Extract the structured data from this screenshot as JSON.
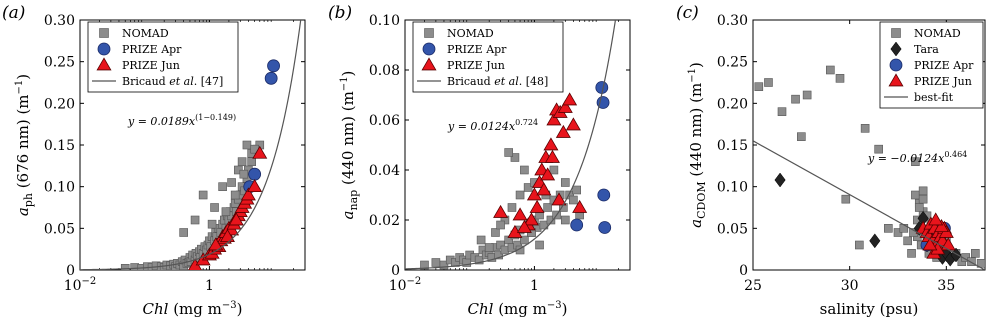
{
  "chart_data": [
    {
      "type": "scatter",
      "panel_label": "(a)",
      "xlabel": {
        "italic": "Chl",
        "rest": " (mg m",
        "sup": "−3",
        "end": ")"
      },
      "ylabel": {
        "base": "a",
        "sub": "ph",
        "rest": " (676 nm) (m",
        "sup": "−1",
        "end": ")"
      },
      "xscale": "log",
      "xlim": [
        0.01,
        30
      ],
      "ylim": [
        0,
        0.3
      ],
      "xticks": [
        0.01,
        1
      ],
      "xtick_labels": [
        {
          "base": "10",
          "sup": "−2"
        },
        {
          "base": "1",
          "sup": ""
        }
      ],
      "yticks": [
        0,
        0.05,
        0.1,
        0.15,
        0.2,
        0.25,
        0.3
      ],
      "ytick_labels": [
        "0",
        "0.05",
        "0.10",
        "0.15",
        "0.20",
        "0.25",
        "0.30"
      ],
      "legend": {
        "entries": [
          {
            "label": "NOMAD",
            "marker": "square"
          },
          {
            "label": "PRIZE Apr",
            "marker": "circle"
          },
          {
            "label": "PRIZE Jun",
            "marker": "triangle"
          },
          {
            "label_parts": [
              "Bricaud ",
              "et al",
              ". [47]"
            ],
            "marker": "line"
          }
        ]
      },
      "equation": {
        "text": "y = 0.0189x",
        "sup": "(1−0.149)"
      },
      "curve": {
        "type": "power",
        "a": 0.0189,
        "b": 0.851
      },
      "series": [
        {
          "name": "NOMAD",
          "marker": "square",
          "color": "#8c8c8c",
          "x": [
            0.05,
            0.07,
            0.09,
            0.11,
            0.13,
            0.15,
            0.18,
            0.2,
            0.22,
            0.25,
            0.28,
            0.3,
            0.32,
            0.35,
            0.38,
            0.4,
            0.42,
            0.45,
            0.48,
            0.5,
            0.52,
            0.55,
            0.6,
            0.62,
            0.65,
            0.7,
            0.72,
            0.75,
            0.8,
            0.85,
            0.9,
            0.95,
            1.0,
            1.05,
            1.1,
            1.2,
            1.25,
            1.3,
            1.4,
            1.5,
            1.6,
            1.7,
            1.8,
            1.9,
            2.0,
            2.1,
            2.2,
            2.4,
            2.5,
            2.6,
            2.8,
            3.0,
            3.2,
            3.5,
            3.8,
            4.0,
            4.5,
            5.0,
            5.5,
            6.0,
            0.6,
            0.4,
            0.8,
            1.2,
            1.6,
            2.2,
            2.8,
            3.4,
            3.2,
            3.8,
            4.5,
            5.0,
            2.5,
            1.8,
            1.1
          ],
          "y": [
            0.002,
            0.003,
            0.002,
            0.004,
            0.003,
            0.005,
            0.004,
            0.003,
            0.006,
            0.005,
            0.007,
            0.004,
            0.008,
            0.006,
            0.01,
            0.005,
            0.012,
            0.008,
            0.009,
            0.015,
            0.01,
            0.018,
            0.012,
            0.02,
            0.016,
            0.022,
            0.015,
            0.025,
            0.02,
            0.028,
            0.024,
            0.03,
            0.035,
            0.028,
            0.04,
            0.035,
            0.045,
            0.04,
            0.05,
            0.045,
            0.055,
            0.06,
            0.05,
            0.065,
            0.06,
            0.07,
            0.065,
            0.075,
            0.08,
            0.07,
            0.085,
            0.09,
            0.1,
            0.095,
            0.11,
            0.12,
            0.13,
            0.14,
            0.145,
            0.15,
            0.06,
            0.045,
            0.09,
            0.075,
            0.1,
            0.105,
            0.12,
            0.115,
            0.13,
            0.15,
            0.14,
            0.145,
            0.09,
            0.07,
            0.055
          ]
        },
        {
          "name": "PRIZE Apr",
          "marker": "circle",
          "color": "#3355aa",
          "x": [
            4.2,
            5.0,
            9.0,
            9.8
          ],
          "y": [
            0.1,
            0.115,
            0.23,
            0.245
          ]
        },
        {
          "name": "PRIZE Jun",
          "marker": "triangle",
          "color": "#e8141c",
          "x": [
            0.6,
            0.8,
            1.0,
            1.1,
            1.2,
            1.3,
            1.4,
            1.5,
            1.6,
            1.7,
            1.8,
            2.0,
            2.2,
            2.4,
            2.5,
            2.8,
            3.0,
            3.2,
            3.5,
            3.8,
            4.0,
            5.0,
            6.0,
            2.6,
            1.9,
            1.25
          ],
          "y": [
            0.005,
            0.012,
            0.018,
            0.02,
            0.025,
            0.03,
            0.028,
            0.035,
            0.04,
            0.038,
            0.045,
            0.05,
            0.048,
            0.055,
            0.06,
            0.065,
            0.07,
            0.075,
            0.08,
            0.085,
            0.09,
            0.1,
            0.14,
            0.06,
            0.04,
            0.03
          ]
        }
      ]
    },
    {
      "type": "scatter",
      "panel_label": "(b)",
      "xlabel": {
        "italic": "Chl",
        "rest": " (mg m",
        "sup": "−3",
        "end": ")"
      },
      "ylabel": {
        "base": "a",
        "sub": "nap",
        "rest": " (440 nm) (m",
        "sup": "−1",
        "end": ")"
      },
      "xscale": "log",
      "xlim": [
        0.01,
        30
      ],
      "ylim": [
        0,
        0.1
      ],
      "xticks": [
        0.01,
        1
      ],
      "xtick_labels": [
        {
          "base": "10",
          "sup": "−2"
        },
        {
          "base": "1",
          "sup": ""
        }
      ],
      "yticks": [
        0,
        0.02,
        0.04,
        0.06,
        0.08,
        0.1
      ],
      "ytick_labels": [
        "0",
        "0.02",
        "0.04",
        "0.06",
        "0.08",
        "0.10"
      ],
      "legend": {
        "entries": [
          {
            "label": "NOMAD",
            "marker": "square"
          },
          {
            "label": "PRIZE Apr",
            "marker": "circle"
          },
          {
            "label": "PRIZE Jun",
            "marker": "triangle"
          },
          {
            "label_parts": [
              "Bricaud ",
              "et al",
              ". [48]"
            ],
            "marker": "line"
          }
        ]
      },
      "equation": {
        "text": "y = 0.0124x",
        "sup": "0.724"
      },
      "curve": {
        "type": "power",
        "a": 0.0124,
        "b": 0.724
      },
      "series": [
        {
          "name": "NOMAD",
          "marker": "square",
          "color": "#8c8c8c",
          "x": [
            0.02,
            0.03,
            0.04,
            0.05,
            0.06,
            0.07,
            0.08,
            0.09,
            0.1,
            0.12,
            0.14,
            0.16,
            0.18,
            0.2,
            0.22,
            0.25,
            0.28,
            0.3,
            0.35,
            0.4,
            0.45,
            0.5,
            0.55,
            0.6,
            0.7,
            0.8,
            0.9,
            1.0,
            1.1,
            1.2,
            1.4,
            1.6,
            1.8,
            2.0,
            2.2,
            2.5,
            2.8,
            3.0,
            3.5,
            4.0,
            4.5,
            5.0,
            0.15,
            0.25,
            0.35,
            0.45,
            0.6,
            0.8,
            0.5,
            0.4,
            0.3,
            0.7,
            1.0,
            1.5,
            2.0,
            3.0,
            0.9,
            0.6,
            1.2,
            0.2
          ],
          "y": [
            0.002,
            0.003,
            0.002,
            0.004,
            0.003,
            0.005,
            0.004,
            0.003,
            0.006,
            0.005,
            0.004,
            0.008,
            0.006,
            0.007,
            0.005,
            0.009,
            0.006,
            0.01,
            0.008,
            0.012,
            0.009,
            0.014,
            0.01,
            0.016,
            0.012,
            0.018,
            0.015,
            0.02,
            0.017,
            0.022,
            0.018,
            0.025,
            0.02,
            0.028,
            0.022,
            0.03,
            0.025,
            0.02,
            0.03,
            0.028,
            0.032,
            0.022,
            0.012,
            0.015,
            0.02,
            0.025,
            0.03,
            0.033,
            0.045,
            0.047,
            0.018,
            0.04,
            0.035,
            0.03,
            0.04,
            0.035,
            0.015,
            0.008,
            0.01,
            0.009
          ]
        },
        {
          "name": "PRIZE Apr",
          "marker": "circle",
          "color": "#3355aa",
          "x": [
            4.5,
            11.0,
            11.5,
            11.8,
            12.2
          ],
          "y": [
            0.018,
            0.073,
            0.067,
            0.03,
            0.017
          ]
        },
        {
          "name": "PRIZE Jun",
          "marker": "triangle",
          "color": "#e8141c",
          "x": [
            0.3,
            0.5,
            0.6,
            0.8,
            0.9,
            1.0,
            1.1,
            1.2,
            1.3,
            1.5,
            1.6,
            1.8,
            2.0,
            2.2,
            2.5,
            2.8,
            3.0,
            3.5,
            4.0,
            5.0,
            2.4,
            1.9,
            1.4,
            0.7
          ],
          "y": [
            0.023,
            0.015,
            0.022,
            0.018,
            0.02,
            0.03,
            0.025,
            0.035,
            0.04,
            0.045,
            0.038,
            0.05,
            0.06,
            0.064,
            0.063,
            0.055,
            0.065,
            0.068,
            0.058,
            0.025,
            0.028,
            0.045,
            0.032,
            0.017
          ]
        }
      ]
    },
    {
      "type": "scatter",
      "panel_label": "(c)",
      "xlabel": {
        "italic": "",
        "rest": "salinity (psu)",
        "sup": "",
        "end": ""
      },
      "ylabel": {
        "base": "a",
        "sub": "CDOM",
        "rest": " (440 nm) (m",
        "sup": "−1",
        "end": ")"
      },
      "xscale": "linear",
      "xlim": [
        25,
        37
      ],
      "ylim": [
        0,
        0.3
      ],
      "xticks": [
        25,
        30,
        35
      ],
      "xtick_labels": [
        {
          "base": "25",
          "sup": ""
        },
        {
          "base": "30",
          "sup": ""
        },
        {
          "base": "35",
          "sup": ""
        }
      ],
      "yticks": [
        0,
        0.05,
        0.1,
        0.15,
        0.2,
        0.25,
        0.3
      ],
      "ytick_labels": [
        "0",
        "0.05",
        "0.10",
        "0.15",
        "0.20",
        "0.25",
        "0.30"
      ],
      "legend": {
        "entries": [
          {
            "label": "NOMAD",
            "marker": "square"
          },
          {
            "label": "Tara",
            "marker": "diamond"
          },
          {
            "label": "PRIZE Apr",
            "marker": "circle"
          },
          {
            "label": "PRIZE Jun",
            "marker": "triangle"
          },
          {
            "label": "best-fit",
            "marker": "line"
          }
        ]
      },
      "equation": {
        "text": "y = −0.0124x",
        "sup": "0.464"
      },
      "curve": {
        "type": "linear",
        "x0": 25,
        "y0": 0.155,
        "x1": 37,
        "y1": 0.0
      },
      "series": [
        {
          "name": "NOMAD",
          "marker": "square",
          "color": "#8c8c8c",
          "x": [
            25.3,
            25.8,
            26.5,
            27.2,
            27.8,
            29.0,
            29.8,
            30.5,
            30.8,
            31.5,
            32.0,
            32.5,
            33.0,
            33.2,
            33.4,
            33.5,
            33.6,
            33.7,
            33.8,
            33.9,
            34.0,
            34.1,
            34.2,
            34.3,
            34.4,
            34.5,
            34.6,
            34.8,
            35.0,
            35.2,
            35.5,
            35.8,
            36.0,
            36.3,
            36.5,
            36.8,
            33.5,
            33.6,
            33.8,
            34.0,
            34.2,
            33.7,
            33.3,
            34.5,
            35.0,
            33.4,
            27.5,
            29.5,
            33.8,
            32.8
          ],
          "y": [
            0.22,
            0.225,
            0.19,
            0.205,
            0.21,
            0.24,
            0.085,
            0.03,
            0.17,
            0.145,
            0.05,
            0.045,
            0.035,
            0.02,
            0.09,
            0.06,
            0.08,
            0.05,
            0.07,
            0.03,
            0.04,
            0.02,
            0.055,
            0.03,
            0.025,
            0.015,
            0.04,
            0.02,
            0.03,
            0.015,
            0.02,
            0.01,
            0.015,
            0.01,
            0.02,
            0.008,
            0.04,
            0.075,
            0.085,
            0.065,
            0.045,
            0.03,
            0.045,
            0.05,
            0.04,
            0.13,
            0.16,
            0.23,
            0.095,
            0.05
          ]
        },
        {
          "name": "Tara",
          "marker": "diamond",
          "color": "#222222",
          "x": [
            26.4,
            31.3,
            33.6,
            34.0,
            34.5,
            34.8,
            35.0,
            35.2,
            34.2,
            35.5,
            34.7,
            33.8
          ],
          "y": [
            0.108,
            0.035,
            0.05,
            0.03,
            0.025,
            0.015,
            0.02,
            0.013,
            0.04,
            0.018,
            0.032,
            0.062
          ]
        },
        {
          "name": "PRIZE Apr",
          "marker": "circle",
          "color": "#3355aa",
          "x": [
            34.0,
            34.3,
            34.6,
            34.9
          ],
          "y": [
            0.03,
            0.045,
            0.038,
            0.05
          ]
        },
        {
          "name": "PRIZE Jun",
          "marker": "triangle",
          "color": "#e8141c",
          "x": [
            33.8,
            34.0,
            34.1,
            34.2,
            34.3,
            34.4,
            34.5,
            34.6,
            34.7,
            34.8,
            34.9,
            35.0,
            35.1,
            34.35,
            34.55,
            34.75,
            34.15,
            34.45
          ],
          "y": [
            0.05,
            0.045,
            0.04,
            0.055,
            0.035,
            0.05,
            0.03,
            0.045,
            0.04,
            0.035,
            0.05,
            0.045,
            0.03,
            0.02,
            0.025,
            0.052,
            0.03,
            0.06
          ]
        }
      ]
    }
  ]
}
